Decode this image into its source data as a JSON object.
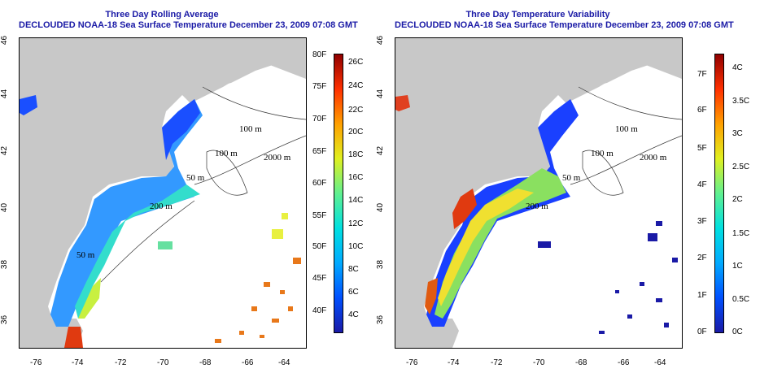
{
  "left_panel": {
    "title": "Three Day Rolling Average",
    "subtitle": "DECLOUDED NOAA-18 Sea Surface Temperature December 23, 2009 07:08 GMT",
    "x_ticks": [
      "-76",
      "-74",
      "-72",
      "-70",
      "-68",
      "-66",
      "-64"
    ],
    "y_ticks": [
      "46",
      "44",
      "42",
      "40",
      "38",
      "36"
    ],
    "contours": [
      "100 m",
      "2000 m",
      "100 m",
      "50 m",
      "200 m",
      "50 m"
    ],
    "colorbar_f": [
      "80F",
      "75F",
      "70F",
      "65F",
      "60F",
      "55F",
      "50F",
      "45F",
      "40F"
    ],
    "colorbar_c": [
      "26C",
      "24C",
      "22C",
      "20C",
      "18C",
      "16C",
      "14C",
      "12C",
      "10C",
      "8C",
      "6C",
      "4C"
    ]
  },
  "right_panel": {
    "title": "Three Day Temperature Variability",
    "subtitle": "DECLOUDED NOAA-18 Sea Surface Temperature December 23, 2009 07:08 GMT",
    "x_ticks": [
      "-76",
      "-74",
      "-72",
      "-70",
      "-68",
      "-66",
      "-64"
    ],
    "y_ticks": [
      "46",
      "44",
      "42",
      "40",
      "38",
      "36"
    ],
    "contours": [
      "100 m",
      "2000 m",
      "100 m",
      "50 m",
      "200 m"
    ],
    "colorbar_f": [
      "7F",
      "6F",
      "5F",
      "4F",
      "3F",
      "2F",
      "1F",
      "0F"
    ],
    "colorbar_c": [
      "4C",
      "3.5C",
      "3C",
      "2.5C",
      "2C",
      "1.5C",
      "1C",
      "0.5C",
      "0C"
    ]
  },
  "colors": {
    "title": "#1a1aa6",
    "land": "#c8c8c8",
    "colorbar": [
      "#00007f",
      "#0000ff",
      "#0080ff",
      "#00ffff",
      "#80ff80",
      "#ffff00",
      "#ff8000",
      "#ff0000",
      "#7f0000"
    ]
  }
}
